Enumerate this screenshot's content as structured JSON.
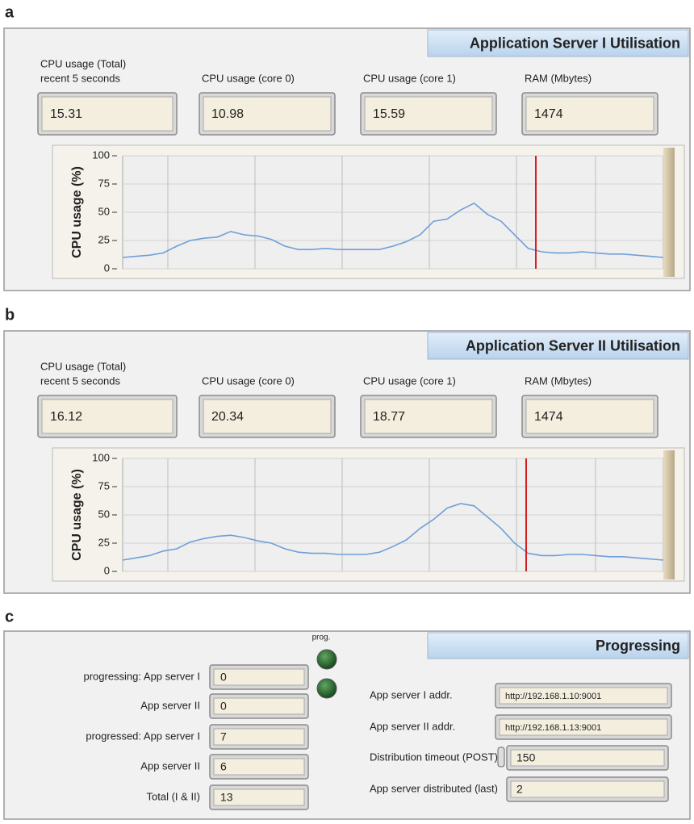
{
  "panels": [
    {
      "letter": "a",
      "title": "Application Server I Utilisation",
      "fields": [
        {
          "label": [
            "CPU usage (Total)",
            "recent 5 seconds"
          ],
          "value": "15.31"
        },
        {
          "label": [
            "CPU usage (core 0)"
          ],
          "value": "10.98"
        },
        {
          "label": [
            "CPU usage (core 1)"
          ],
          "value": "15.59"
        },
        {
          "label": [
            "RAM (Mbytes)"
          ],
          "value": "1474"
        }
      ],
      "chart_data": {
        "type": "line",
        "ylabel": "CPU usage (%)",
        "color": "#6f9fd8",
        "values": [
          10,
          11,
          12,
          14,
          20,
          25,
          27,
          28,
          33,
          30,
          29,
          26,
          20,
          17,
          17,
          18,
          17,
          17,
          17,
          17,
          20,
          24,
          30,
          42,
          44,
          52,
          58,
          48,
          42,
          30,
          18,
          15,
          14,
          14,
          15,
          14,
          13,
          13,
          12,
          11,
          10
        ],
        "ylim": [
          0,
          100
        ],
        "yticks": [
          0,
          25,
          50,
          75,
          100
        ],
        "grid": true
      }
    },
    {
      "letter": "b",
      "title": "Application Server II Utilisation",
      "fields": [
        {
          "label": [
            "CPU usage (Total)",
            "recent 5 seconds"
          ],
          "value": "16.12"
        },
        {
          "label": [
            "CPU usage (core 0)"
          ],
          "value": "20.34"
        },
        {
          "label": [
            "CPU usage (core 1)"
          ],
          "value": "18.77"
        },
        {
          "label": [
            "RAM (Mbytes)"
          ],
          "value": "1474"
        }
      ],
      "chart_data": {
        "type": "line",
        "ylabel": "CPU usage (%)",
        "color": "#6f9fd8",
        "values": [
          10,
          12,
          14,
          18,
          20,
          26,
          29,
          31,
          32,
          30,
          27,
          25,
          20,
          17,
          16,
          16,
          15,
          15,
          15,
          17,
          22,
          28,
          38,
          46,
          56,
          60,
          58,
          48,
          38,
          25,
          16,
          14,
          14,
          15,
          15,
          14,
          13,
          13,
          12,
          11,
          10
        ],
        "ylim": [
          0,
          100
        ],
        "yticks": [
          0,
          25,
          50,
          75,
          100
        ],
        "grid": true
      }
    }
  ],
  "progress": {
    "letter": "c",
    "title": "Progressing",
    "led_label": "prog.",
    "left": [
      {
        "label": "progressing: App server I",
        "value": "0"
      },
      {
        "label": "App server II",
        "value": "0"
      },
      {
        "label": "progressed: App server I",
        "value": "7"
      },
      {
        "label": "App server II",
        "value": "6"
      },
      {
        "label": "Total (I & II)",
        "value": "13"
      }
    ],
    "right": [
      {
        "label": "App server I addr.",
        "value": "http://192.168.1.10:9001"
      },
      {
        "label": "App server II addr.",
        "value": "http://192.168.1.13:9001"
      },
      {
        "label": "Distribution timeout (POST)",
        "value": "150"
      },
      {
        "label": "App server distributed (last)",
        "value": "2"
      }
    ]
  }
}
